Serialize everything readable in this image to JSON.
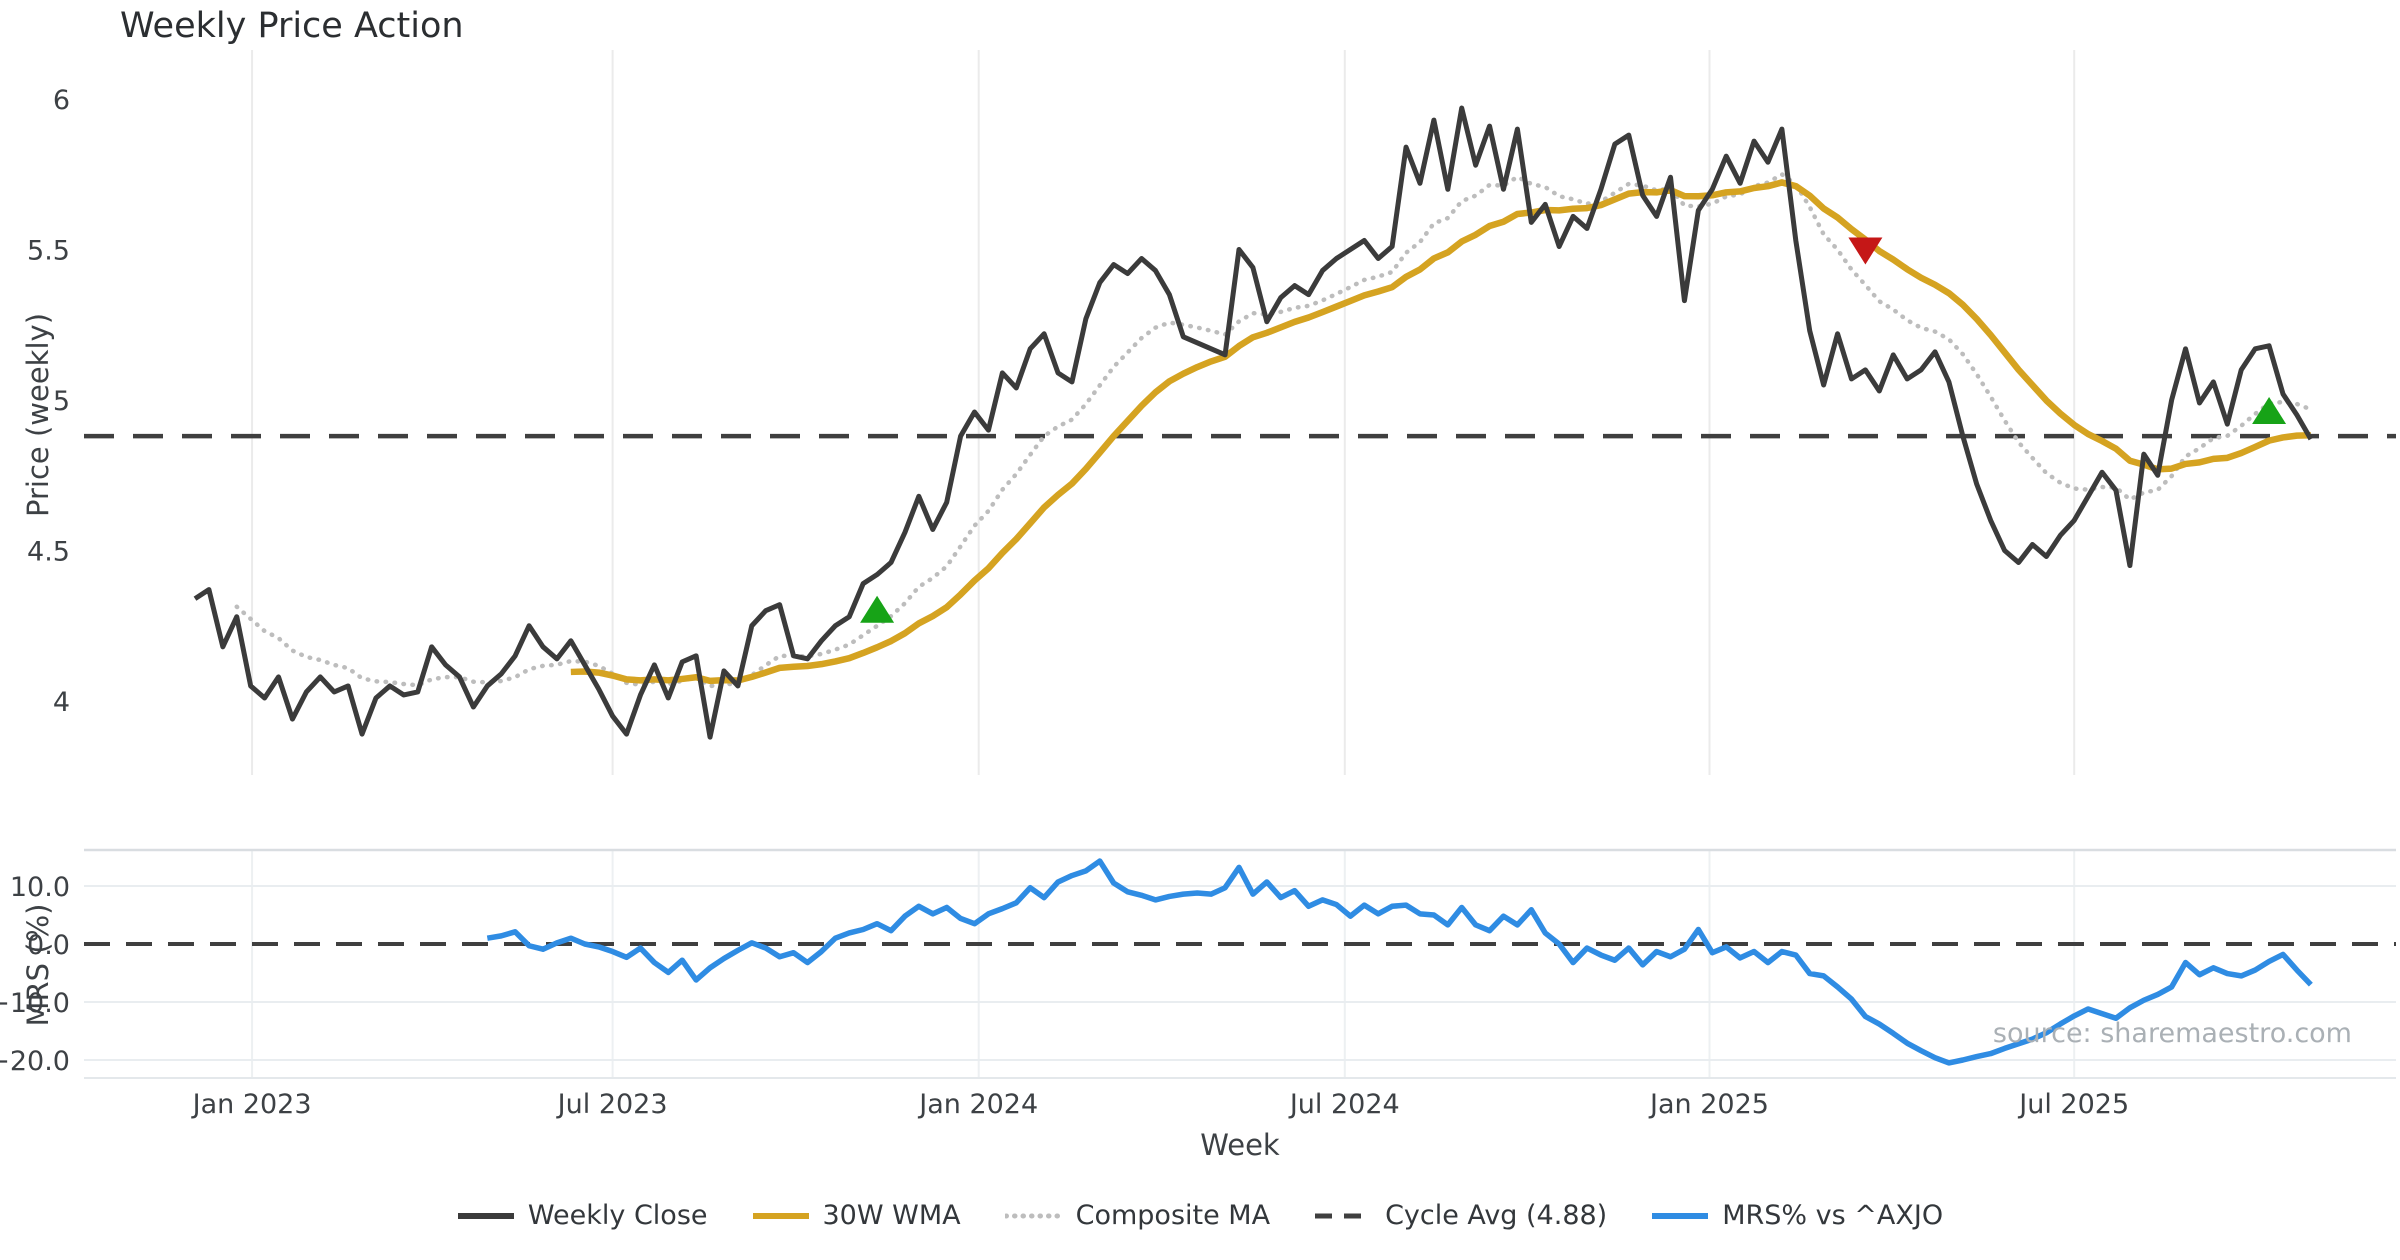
{
  "chart_data": {
    "type": "line",
    "title": "Weekly Price Action",
    "xlabel": "Week",
    "source": "source: sharemaestro.com",
    "x_ticks": [
      {
        "week": 4.1,
        "label": "Jan 2023"
      },
      {
        "week": 30.0,
        "label": "Jul 2023"
      },
      {
        "week": 56.3,
        "label": "Jan 2024"
      },
      {
        "week": 82.6,
        "label": "Jul 2024"
      },
      {
        "week": 108.8,
        "label": "Jan 2025"
      },
      {
        "week": 135.0,
        "label": "Jul 2025"
      }
    ],
    "panels": [
      {
        "name": "price",
        "ylabel": "Price (weekly)",
        "ylim": [
          3.75,
          6.15
        ],
        "yticks": [
          {
            "v": 6,
            "label": "6"
          },
          {
            "v": 5.5,
            "label": "5.5"
          },
          {
            "v": 5,
            "label": "5"
          },
          {
            "v": 4.5,
            "label": "4.5"
          },
          {
            "v": 4,
            "label": "4"
          }
        ],
        "grid": "vertical-only"
      },
      {
        "name": "mrs",
        "ylabel": "MRS (%)",
        "ylim": [
          -23,
          16
        ],
        "yticks": [
          {
            "v": 10,
            "label": "10.0"
          },
          {
            "v": 0,
            "label": "0.0"
          },
          {
            "v": -10,
            "label": "−10.0"
          },
          {
            "v": -20,
            "label": "−20.0"
          }
        ],
        "grid": "both"
      }
    ],
    "series": [
      {
        "id": "weekly_close",
        "name": "Weekly Close",
        "panel": "price",
        "style": "solid",
        "color": "#3b3b3b",
        "start_week": 0,
        "values": [
          4.34,
          4.37,
          4.18,
          4.28,
          4.05,
          4.01,
          4.08,
          3.94,
          4.03,
          4.08,
          4.03,
          4.05,
          3.89,
          4.01,
          4.05,
          4.02,
          4.03,
          4.18,
          4.12,
          4.08,
          3.98,
          4.05,
          4.09,
          4.15,
          4.25,
          4.18,
          4.14,
          4.2,
          4.12,
          4.04,
          3.95,
          3.89,
          4.02,
          4.12,
          4.01,
          4.13,
          4.15,
          3.88,
          4.1,
          4.05,
          4.25,
          4.3,
          4.32,
          4.15,
          4.14,
          4.2,
          4.25,
          4.28,
          4.39,
          4.42,
          4.46,
          4.56,
          4.68,
          4.57,
          4.66,
          4.88,
          4.96,
          4.9,
          5.09,
          5.04,
          5.17,
          5.22,
          5.09,
          5.06,
          5.27,
          5.39,
          5.45,
          5.42,
          5.47,
          5.43,
          5.35,
          5.21,
          5.19,
          5.17,
          5.15,
          5.5,
          5.44,
          5.26,
          5.34,
          5.38,
          5.35,
          5.43,
          5.47,
          5.5,
          5.53,
          5.47,
          5.51,
          5.84,
          5.72,
          5.93,
          5.7,
          5.97,
          5.78,
          5.91,
          5.7,
          5.9,
          5.59,
          5.65,
          5.51,
          5.61,
          5.57,
          5.7,
          5.85,
          5.88,
          5.68,
          5.61,
          5.74,
          5.33,
          5.63,
          5.7,
          5.81,
          5.72,
          5.86,
          5.79,
          5.9,
          5.53,
          5.23,
          5.05,
          5.22,
          5.07,
          5.1,
          5.03,
          5.15,
          5.07,
          5.1,
          5.16,
          5.06,
          4.88,
          4.72,
          4.6,
          4.5,
          4.46,
          4.52,
          4.48,
          4.55,
          4.6,
          4.68,
          4.76,
          4.7,
          4.45,
          4.82,
          4.75,
          5.0,
          5.17,
          4.99,
          5.06,
          4.92,
          5.1,
          5.17,
          5.18,
          5.02,
          4.95,
          4.87
        ]
      },
      {
        "id": "wma30",
        "name": "30W WMA",
        "panel": "price",
        "style": "solid",
        "color": "#d5a321",
        "derived": "linear_weighted_moving_average_of_weekly_close",
        "window": 30,
        "draw_from_index": 27
      },
      {
        "id": "composite",
        "name": "Composite MA",
        "panel": "price",
        "style": "dotted",
        "color": "#bdbdbd",
        "derived": "ema_of_weekly_close",
        "span": 12,
        "draw_from_index": 3
      },
      {
        "id": "cycle_avg",
        "name": "Cycle Avg (4.88)",
        "panel": "price",
        "style": "dashed",
        "color": "#3f3f3f",
        "value": 4.88
      },
      {
        "id": "mrs",
        "name": "MRS% vs ^AXJO",
        "panel": "mrs",
        "style": "solid",
        "color": "#2f8ce3",
        "start_week": 21,
        "values": [
          1.0,
          1.4,
          2.1,
          -0.3,
          -0.9,
          0.2,
          1.0,
          0.0,
          -0.5,
          -1.3,
          -2.3,
          -0.7,
          -3.2,
          -4.9,
          -2.8,
          -6.2,
          -4.1,
          -2.5,
          -1.1,
          0.2,
          -0.7,
          -2.2,
          -1.5,
          -3.2,
          -1.3,
          1.0,
          1.9,
          2.5,
          3.5,
          2.3,
          4.8,
          6.5,
          5.2,
          6.3,
          4.4,
          3.5,
          5.2,
          6.1,
          7.1,
          9.7,
          8.0,
          10.7,
          11.8,
          12.6,
          14.3,
          10.5,
          9.0,
          8.4,
          7.6,
          8.2,
          8.6,
          8.8,
          8.6,
          9.7,
          13.2,
          8.6,
          10.7,
          8.0,
          9.2,
          6.5,
          7.6,
          6.8,
          4.8,
          6.7,
          5.2,
          6.5,
          6.7,
          5.2,
          5.0,
          3.3,
          6.3,
          3.3,
          2.3,
          4.8,
          3.3,
          5.9,
          1.9,
          0.0,
          -3.2,
          -0.7,
          -1.9,
          -2.8,
          -0.7,
          -3.6,
          -1.3,
          -2.2,
          -0.9,
          2.5,
          -1.5,
          -0.5,
          -2.4,
          -1.3,
          -3.2,
          -1.3,
          -1.9,
          -5.1,
          -5.5,
          -7.4,
          -9.5,
          -12.5,
          -13.8,
          -15.4,
          -17.1,
          -18.4,
          -19.6,
          -20.5,
          -20.0,
          -19.4,
          -18.9,
          -18.0,
          -17.2,
          -16.4,
          -15.3,
          -13.8,
          -12.4,
          -11.2,
          -12.0,
          -12.8,
          -11.0,
          -9.7,
          -8.7,
          -7.4,
          -3.2,
          -5.3,
          -4.1,
          -5.1,
          -5.5,
          -4.5,
          -3.0,
          -1.8,
          -4.5,
          -7.0
        ]
      }
    ],
    "zero_line": {
      "panel": "mrs",
      "value": 0,
      "style": "dashed",
      "color": "#3f3f3f"
    },
    "markers": [
      {
        "week": 49,
        "value": 4.3,
        "shape": "triangle-up",
        "color": "#17a317",
        "name": "buy-signal-marker"
      },
      {
        "week": 120,
        "value": 5.5,
        "shape": "triangle-down",
        "color": "#c51717",
        "name": "sell-signal-marker"
      },
      {
        "week": 149,
        "value": 4.96,
        "shape": "triangle-up",
        "color": "#17a317",
        "name": "buy-signal-marker"
      }
    ],
    "legend": [
      {
        "label": "Weekly Close",
        "style": "solid",
        "color": "#3b3b3b"
      },
      {
        "label": "30W WMA",
        "style": "solid",
        "color": "#d5a321"
      },
      {
        "label": "Composite MA",
        "style": "dotted",
        "color": "#bdbdbd"
      },
      {
        "label": "Cycle Avg (4.88)",
        "style": "dashed",
        "color": "#3f3f3f"
      },
      {
        "label": "MRS% vs ^AXJO",
        "style": "solid",
        "color": "#2f8ce3"
      }
    ]
  }
}
